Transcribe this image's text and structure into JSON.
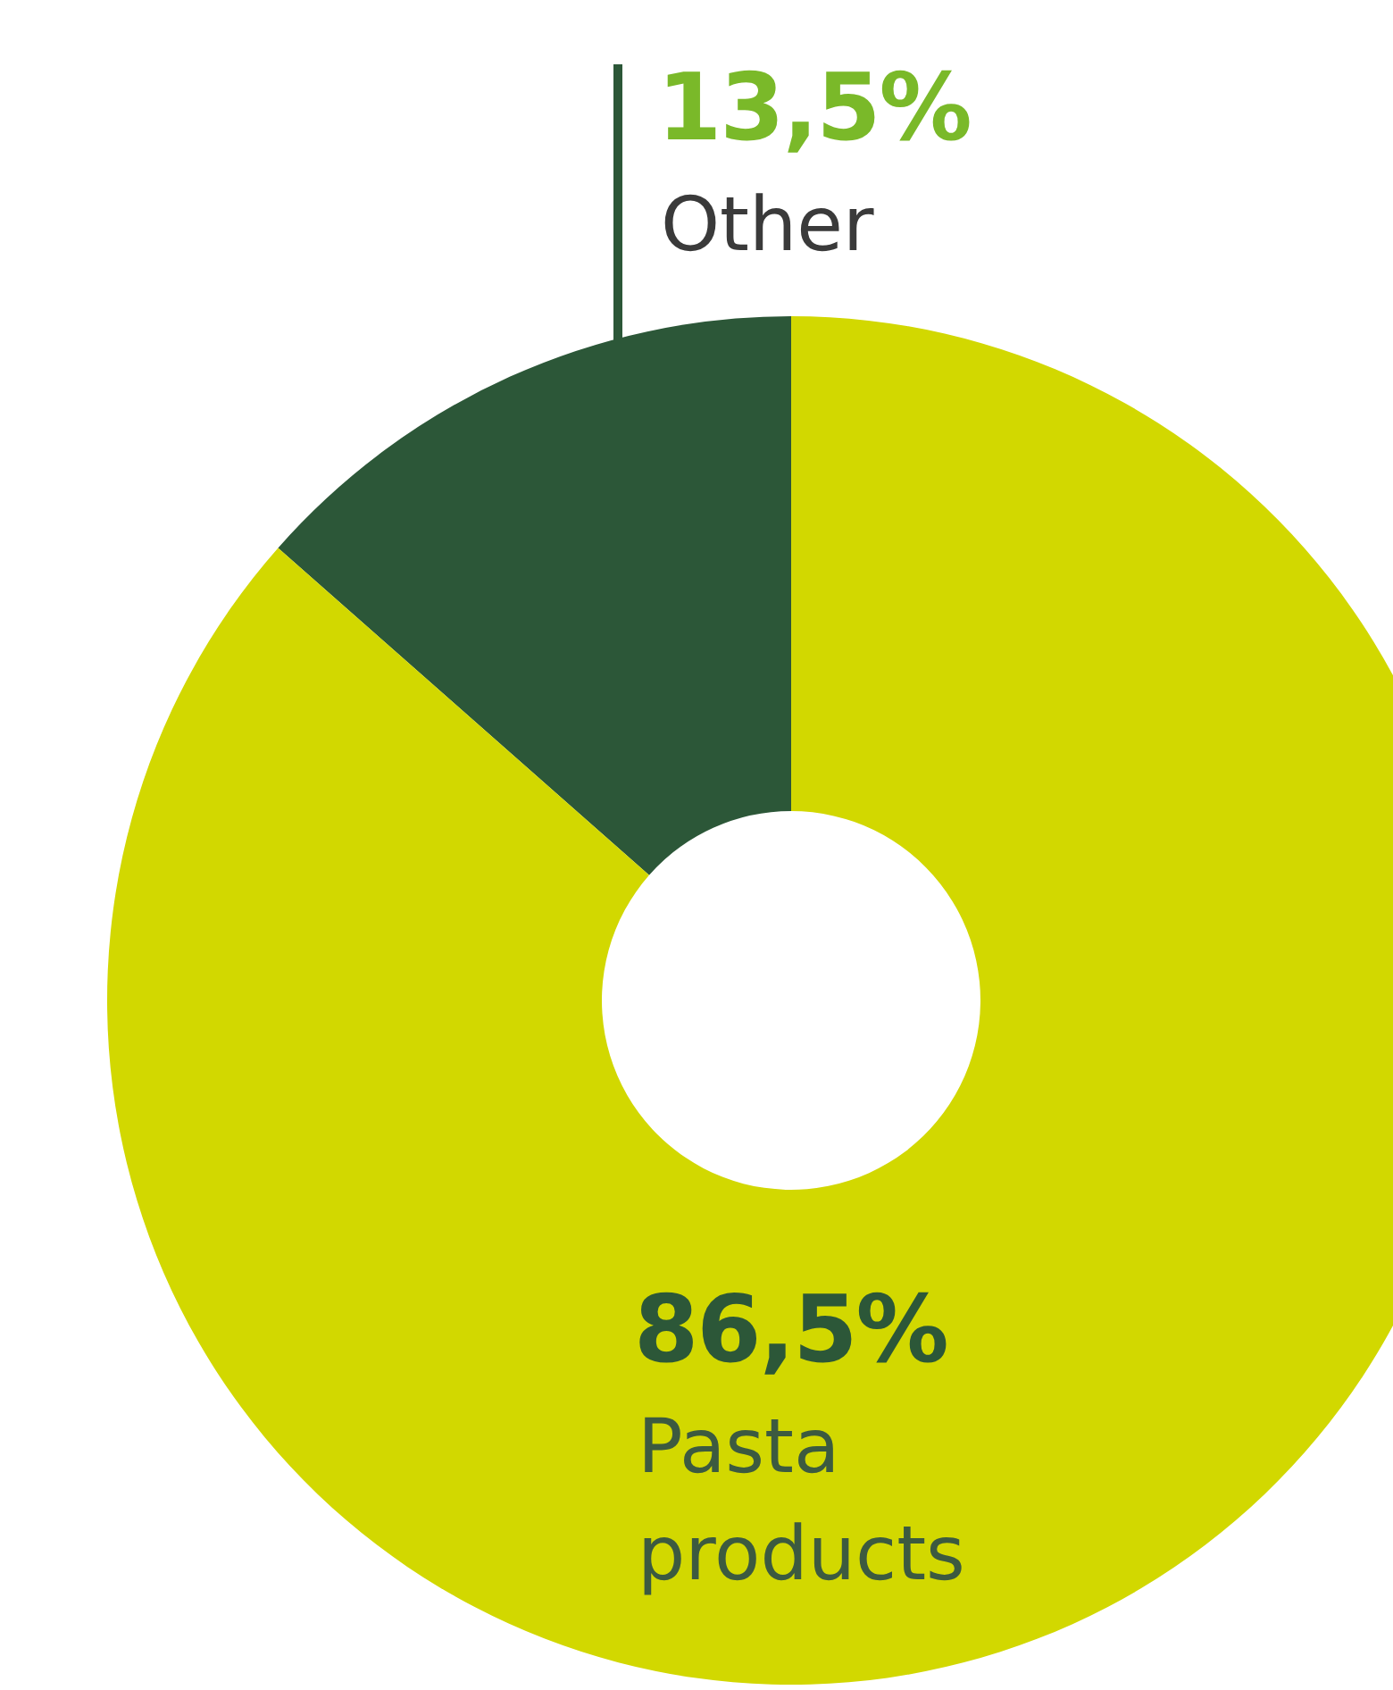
{
  "chart_data": {
    "type": "donut",
    "categories": [
      "Other",
      "Pasta products"
    ],
    "values": [
      13.5,
      86.5
    ],
    "colors": [
      "#2c5738",
      "#d2d800"
    ],
    "value_labels": [
      "13,5%",
      "86,5%"
    ],
    "legend": false
  }
}
